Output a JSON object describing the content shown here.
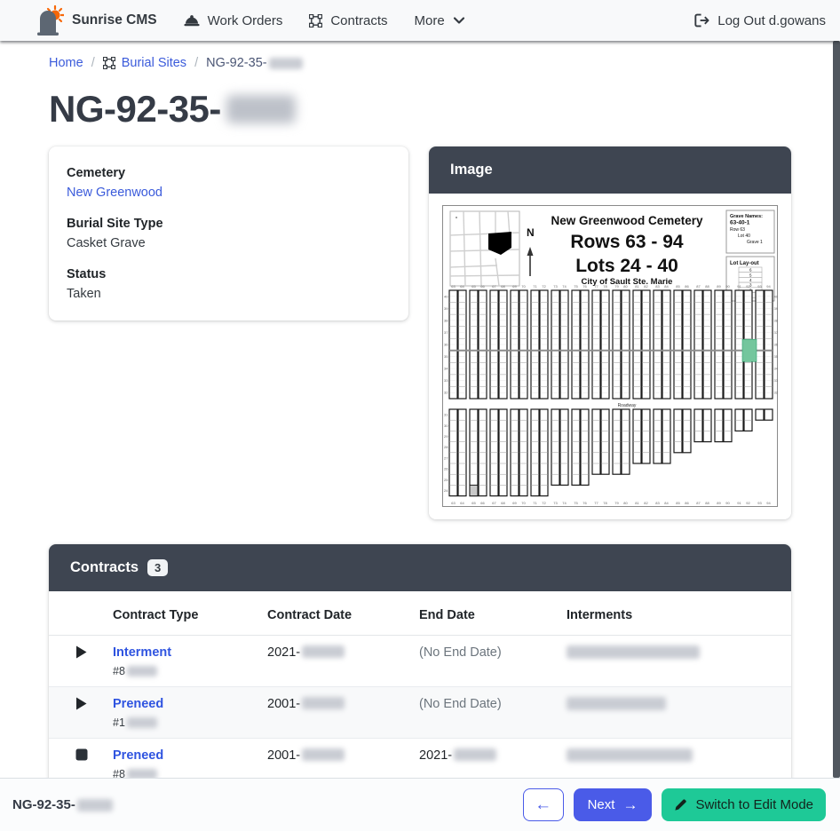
{
  "navbar": {
    "brand": "Sunrise CMS",
    "work_orders": "Work Orders",
    "contracts": "Contracts",
    "more": "More",
    "logout": "Log Out d.gowans"
  },
  "breadcrumb": {
    "home": "Home",
    "separator": "/",
    "burial_sites": "Burial Sites",
    "current_prefix": "NG-92-35-"
  },
  "page": {
    "title_prefix": "NG-92-35-"
  },
  "details": {
    "cemetery_label": "Cemetery",
    "cemetery_value": "New Greenwood",
    "burial_site_type_label": "Burial Site Type",
    "burial_site_type_value": "Casket Grave",
    "status_label": "Status",
    "status_value": "Taken"
  },
  "image_card": {
    "header": "Image",
    "map": {
      "cemetery_title": "New Greenwood Cemetery",
      "rows_line": "Rows 63 - 94",
      "lots_line": "Lots 24 - 40",
      "city_line": "City of Sault Ste. Marie",
      "north_label": "N",
      "grave_names_lines": [
        "Grave Names:",
        "63-40-1",
        "Row 63",
        "Lot 40",
        "Grave 1"
      ],
      "lot_layout_label": "Lot Lay-out",
      "lot_layout_numbers": [
        "6",
        "5",
        "4",
        "3",
        "2",
        "1"
      ],
      "roadway_label": "Roadway",
      "row_numbers_start": 63,
      "row_numbers_end": 94,
      "lot_numbers_start": 24,
      "lot_numbers_end": 40,
      "highlight_color": "#74c69d"
    }
  },
  "contracts_card": {
    "header": "Contracts",
    "count_badge": "3",
    "columns": [
      "Contract Type",
      "Contract Date",
      "End Date",
      "Interments"
    ],
    "rows": [
      {
        "state_icon": "play",
        "contract_type": "Interment",
        "contract_number_prefix": "#8",
        "contract_date_prefix": "2021-",
        "end_date_text": "(No End Date)"
      },
      {
        "state_icon": "play",
        "contract_type": "Preneed",
        "contract_number_prefix": "#1",
        "contract_date_prefix": "2001-",
        "end_date_text": "(No End Date)"
      },
      {
        "state_icon": "stop",
        "contract_type": "Preneed",
        "contract_number_prefix": "#8",
        "contract_date_prefix": "2001-",
        "end_date_prefix": "2021-"
      }
    ]
  },
  "footer": {
    "site_label_prefix": "NG-92-35-",
    "back_arrow": "←",
    "next_label": "Next",
    "next_arrow": "→",
    "edit_mode_label": "Switch to Edit Mode"
  },
  "colors": {
    "link_blue": "#3b5bdb",
    "primary_blue": "#4a5be8",
    "teal": "#1ec997",
    "header_slate": "#3e4551",
    "highlight_green": "#74c69d"
  }
}
